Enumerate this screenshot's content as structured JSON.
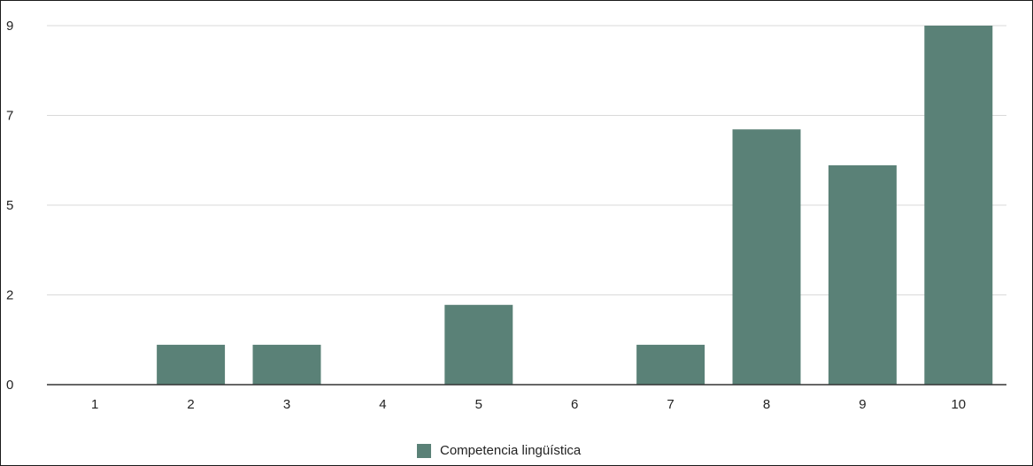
{
  "chart_data": {
    "type": "bar",
    "categories": [
      "1",
      "2",
      "3",
      "4",
      "5",
      "6",
      "7",
      "8",
      "9",
      "10"
    ],
    "series": [
      {
        "name": "Competencia lingüística",
        "values": [
          0,
          1,
          1,
          0,
          2,
          0,
          1,
          6.4,
          5.5,
          9
        ],
        "color": "#5a8177"
      }
    ],
    "y_tick_labels": [
      "0",
      "2",
      "5",
      "7",
      "9"
    ],
    "ylim": [
      0,
      9
    ],
    "grid": true,
    "legend_position": "bottom-center"
  }
}
